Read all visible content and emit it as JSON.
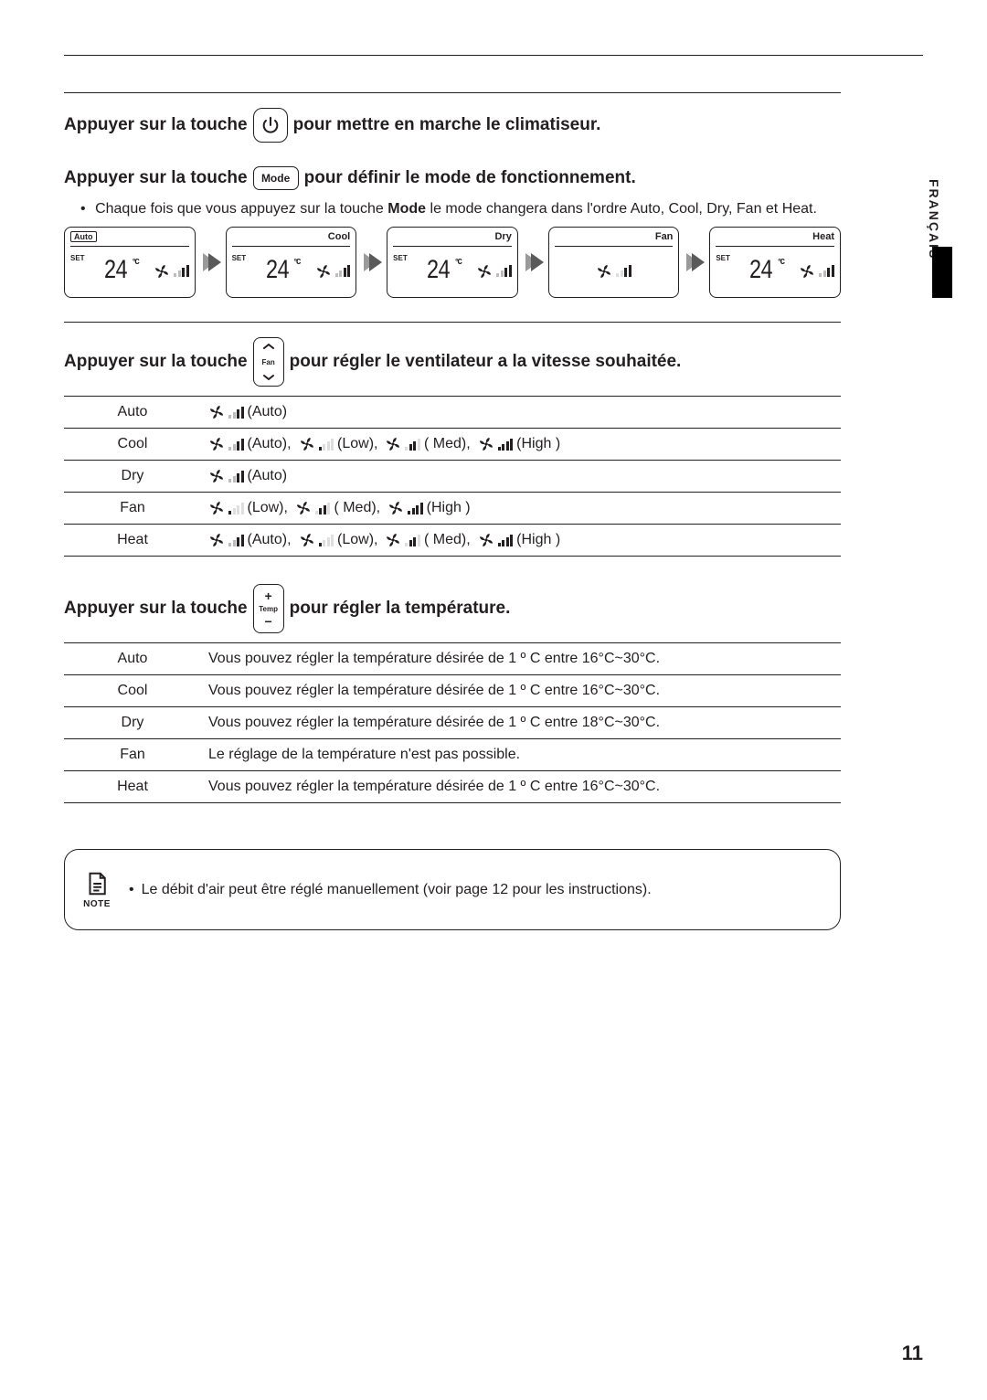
{
  "page": {
    "language_tab": "FRANÇAIS",
    "number": "11"
  },
  "colors": {
    "text": "#231f20",
    "border": "#231f20",
    "arrow_light": "#9a9a9a",
    "arrow_dark": "#5a5a5a",
    "bg": "#ffffff"
  },
  "section_power": {
    "prefix": "Appuyer sur la touche",
    "suffix": "pour mettre en marche le climatiseur.",
    "icon": "power-icon"
  },
  "section_mode": {
    "prefix": "Appuyer sur la touche",
    "btn_label": "Mode",
    "suffix": "pour définir le mode de fonctionnement.",
    "bullet_prefix": "Chaque fois que vous appuyez sur la touche ",
    "bullet_bold": "Mode",
    "bullet_suffix": " le mode changera dans l'ordre Auto, Cool, Dry, Fan et Heat.",
    "panels": [
      {
        "mode_badge": "Auto",
        "mode_right": "",
        "set": "SET",
        "temp": "24",
        "unit": "°C",
        "show_temp": true,
        "bars": "lvl-auto"
      },
      {
        "mode_badge": "",
        "mode_right": "Cool",
        "set": "SET",
        "temp": "24",
        "unit": "°C",
        "show_temp": true,
        "bars": "lvl-auto"
      },
      {
        "mode_badge": "",
        "mode_right": "Dry",
        "set": "SET",
        "temp": "24",
        "unit": "°C",
        "show_temp": true,
        "bars": "lvl-auto"
      },
      {
        "mode_badge": "",
        "mode_right": "Fan",
        "set": "",
        "temp": "",
        "unit": "",
        "show_temp": false,
        "bars": "lvl-fanonly"
      },
      {
        "mode_badge": "",
        "mode_right": "Heat",
        "set": "SET",
        "temp": "24",
        "unit": "°C",
        "show_temp": true,
        "bars": "lvl-auto"
      }
    ]
  },
  "section_fan": {
    "prefix": "Appuyer sur la touche",
    "btn_label": "Fan",
    "suffix": "pour régler le ventilateur a la vitesse souhaitée.",
    "rows": [
      {
        "mode": "Auto",
        "speeds": [
          {
            "bars": "lvl-auto",
            "label": "(Auto)"
          }
        ]
      },
      {
        "mode": "Cool",
        "speeds": [
          {
            "bars": "lvl-auto",
            "label": "(Auto),"
          },
          {
            "bars": "lvl-low",
            "label": "(Low),"
          },
          {
            "bars": "lvl-med",
            "label": "( Med),"
          },
          {
            "bars": "lvl-high",
            "label": "(High )"
          }
        ]
      },
      {
        "mode": "Dry",
        "speeds": [
          {
            "bars": "lvl-auto",
            "label": "(Auto)"
          }
        ]
      },
      {
        "mode": "Fan",
        "speeds": [
          {
            "bars": "lvl-low",
            "label": "(Low),"
          },
          {
            "bars": "lvl-med",
            "label": "( Med),"
          },
          {
            "bars": "lvl-high",
            "label": "(High )"
          }
        ]
      },
      {
        "mode": "Heat",
        "speeds": [
          {
            "bars": "lvl-auto",
            "label": "(Auto),"
          },
          {
            "bars": "lvl-low",
            "label": "(Low),"
          },
          {
            "bars": "lvl-med",
            "label": "( Med),"
          },
          {
            "bars": "lvl-high",
            "label": "(High )"
          }
        ]
      }
    ]
  },
  "section_temp": {
    "prefix": "Appuyer sur la touche",
    "btn_label": "Temp",
    "plus": "+",
    "minus": "−",
    "suffix": "pour régler la température.",
    "rows": [
      {
        "mode": "Auto",
        "text": "Vous pouvez régler la température désirée de 1 º C entre 16°C~30°C."
      },
      {
        "mode": "Cool",
        "text": "Vous pouvez régler la température désirée de 1 º C entre 16°C~30°C."
      },
      {
        "mode": "Dry",
        "text": "Vous pouvez régler la température désirée de 1 º C entre 18°C~30°C."
      },
      {
        "mode": "Fan",
        "text": "Le réglage de la température n'est pas possible."
      },
      {
        "mode": "Heat",
        "text": "Vous pouvez régler la température désirée de 1 º C entre 16°C~30°C."
      }
    ]
  },
  "note": {
    "label": "NOTE",
    "text": "Le débit d'air peut être réglé manuellement (voir page 12 pour les instructions)."
  }
}
